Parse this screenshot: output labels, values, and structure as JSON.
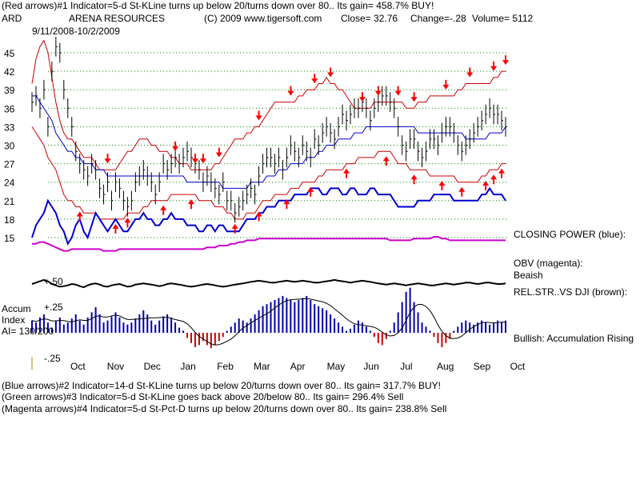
{
  "header": {
    "line1": "(Red arrows)#1 Indicator=5-d St-KLine turns up below 20/turns down over 80.. Its gain= 458.7% BUY!",
    "ticker": "ARD",
    "company": "ARENA RESOURCES",
    "copyright": "(C) 2009 www.tigersoft.com",
    "close": "Close=  32.76",
    "change": "Change=-.28",
    "volume": "Volume= 5112",
    "date_range": "9/11/2008-10/2/2009"
  },
  "panel_labels": {
    "closing_power": "CLOSING POWER (blue):",
    "obv": "OBV (magenta):",
    "obv_status": "Beaish",
    "relstr": "REL.STR..VS DJI (brown):",
    "relstr_tick": "+.50",
    "accum_title_1": "Accum",
    "accum_title_2": "Index",
    "ai": "AI= 130/200",
    "accum_status": "Bullish: Accumulation Rising",
    "accum_pos": "+.25",
    "accum_neg": "-.25"
  },
  "footer": {
    "line2": "(Blue arrows)#2 Indicator=14-d St-KLine turns up below 20/turns down over 80.. Its gain= 317.7% BUY!",
    "line3": "(Green arrows)#3 Indicator=5-d St-KLine goes back above 20/below 80.. Its gain= 296.4% Sell",
    "line4": "(Magenta arrows)#4 Indicator=5-d St-Pct-D turns up below 20/turns down over 80.. Its gain= 238.8% Sell"
  },
  "colors": {
    "price": "#000000",
    "bands": "#cc0000",
    "moving_average": "#0000cc",
    "closing_power": "#0000cc",
    "obv": "#cc00cc",
    "relstr": "#000000",
    "accum_pos": "#0000aa",
    "accum_neg": "#cc0000",
    "grid": "#008000",
    "arrows": "#ff0000"
  },
  "chart_data": {
    "type": "line",
    "title": "ARENA RESOURCES",
    "xlabel": "",
    "ylabel": "",
    "x_categories": [
      "Oct",
      "Nov",
      "Dec",
      "Jan",
      "Feb",
      "Mar",
      "Apr",
      "May",
      "Jun",
      "Jul",
      "Aug",
      "Sep",
      "Oct"
    ],
    "y_ticks": [
      15,
      18,
      21,
      24,
      27,
      30,
      33,
      36,
      39,
      42,
      45
    ],
    "ylim": [
      13.5,
      47.5
    ],
    "grid": true,
    "price_close": [
      37,
      38,
      36,
      39,
      33,
      42,
      46,
      45,
      39,
      36,
      33,
      29,
      27,
      26,
      25,
      27,
      26,
      23,
      22,
      24,
      21,
      24,
      23,
      21,
      20,
      21,
      24,
      25,
      26,
      25,
      24,
      22,
      24,
      27,
      26,
      27,
      28,
      27,
      28,
      29,
      28,
      27,
      26,
      24,
      25,
      24,
      23,
      22,
      24,
      21,
      21,
      19,
      20,
      21,
      22,
      23,
      22,
      25,
      27,
      28,
      28,
      27,
      28,
      26,
      28,
      30,
      29,
      28,
      30,
      29,
      28,
      31,
      30,
      32,
      33,
      32,
      31,
      33,
      35,
      34,
      35,
      36,
      36,
      37,
      36,
      34,
      36,
      37,
      38,
      38,
      37,
      36,
      33,
      30,
      29,
      31,
      31,
      29,
      28,
      29,
      31,
      31,
      30,
      32,
      33,
      33,
      32,
      30,
      29,
      30,
      31,
      32,
      33,
      34,
      35,
      36,
      35,
      35,
      34,
      33
    ],
    "upper_band": [
      40,
      44,
      46,
      47,
      45,
      41,
      37,
      34,
      32,
      31,
      31,
      30,
      29,
      28,
      28,
      28,
      27,
      26,
      26,
      26,
      26,
      26,
      27,
      28,
      29,
      29,
      30,
      31,
      31,
      31,
      30,
      30,
      29,
      29,
      29,
      28,
      28,
      27,
      27,
      27,
      26,
      26,
      26,
      26,
      26,
      26,
      27,
      27,
      28,
      29,
      30,
      31,
      31,
      31,
      32,
      32,
      33,
      33,
      34,
      35,
      36,
      37,
      37,
      37,
      37,
      37,
      37,
      38,
      38,
      39,
      39,
      39,
      40,
      40,
      41,
      40,
      40,
      39,
      39,
      38,
      37,
      36,
      36,
      36,
      36,
      36,
      37,
      37,
      37,
      37,
      37,
      37,
      37,
      37,
      36,
      36,
      36,
      37,
      37,
      37,
      38,
      38,
      38,
      38,
      38,
      38,
      38,
      39,
      39,
      40,
      40,
      40,
      40,
      40,
      40,
      40,
      41,
      41,
      42,
      42
    ],
    "lower_band": [
      33,
      32,
      31,
      30,
      28,
      27,
      26,
      24,
      22,
      21,
      21,
      20,
      20,
      19,
      19,
      19,
      19,
      18,
      18,
      18,
      18,
      18,
      18,
      18,
      19,
      19,
      19,
      19,
      20,
      20,
      21,
      21,
      21,
      21,
      21,
      22,
      22,
      22,
      22,
      22,
      22,
      22,
      21,
      21,
      21,
      21,
      20,
      20,
      20,
      19,
      19,
      18,
      18,
      18,
      19,
      19,
      19,
      20,
      21,
      21,
      21,
      22,
      22,
      22,
      22,
      23,
      23,
      23,
      24,
      24,
      24,
      24,
      25,
      25,
      26,
      26,
      26,
      26,
      26,
      27,
      27,
      27,
      28,
      28,
      28,
      28,
      28,
      29,
      29,
      29,
      29,
      28,
      27,
      27,
      27,
      26,
      26,
      26,
      26,
      26,
      25,
      25,
      25,
      25,
      25,
      25,
      25,
      24,
      24,
      24,
      24,
      24,
      24,
      25,
      25,
      26,
      26,
      26,
      27,
      27
    ],
    "moving_average": [
      38,
      38,
      37,
      36,
      35,
      34,
      32,
      31,
      30,
      29,
      29,
      28,
      28,
      27,
      27,
      27,
      26,
      26,
      26,
      25,
      25,
      25,
      25,
      25,
      25,
      25,
      25,
      25,
      25,
      25,
      25,
      25,
      25,
      25,
      25,
      25,
      25,
      25,
      25,
      24,
      24,
      24,
      24,
      24,
      24,
      24,
      24,
      24,
      23,
      23,
      23,
      23,
      23,
      23,
      23,
      24,
      24,
      24,
      24,
      25,
      25,
      25,
      26,
      26,
      26,
      27,
      27,
      27,
      27,
      28,
      28,
      28,
      29,
      29,
      30,
      30,
      30,
      31,
      31,
      31,
      31,
      32,
      32,
      32,
      33,
      33,
      33,
      33,
      33,
      33,
      33,
      33,
      33,
      33,
      33,
      33,
      33,
      32,
      32,
      32,
      32,
      32,
      32,
      32,
      32,
      32,
      32,
      32,
      32,
      31,
      31,
      31,
      31,
      31,
      31,
      32,
      32,
      32,
      32,
      33
    ],
    "closing_power": [
      15,
      17,
      18,
      19,
      21,
      20,
      19,
      17,
      16,
      14,
      15,
      17,
      18,
      16,
      15,
      17,
      19,
      18,
      17,
      16,
      17,
      18,
      17,
      16,
      16,
      17,
      18,
      18,
      19,
      18,
      18,
      17,
      17,
      18,
      18,
      19,
      18,
      18,
      18,
      17,
      17,
      17,
      16,
      16,
      17,
      17,
      16,
      17,
      17,
      16,
      16,
      16,
      16,
      17,
      18,
      18,
      18,
      19,
      19,
      20,
      20,
      20,
      21,
      21,
      21,
      21,
      22,
      22,
      22,
      22,
      23,
      23,
      23,
      22,
      22,
      23,
      23,
      23,
      22,
      22,
      23,
      23,
      22,
      22,
      22,
      23,
      23,
      22,
      22,
      22,
      22,
      21,
      20,
      20,
      20,
      20,
      20,
      21,
      21,
      21,
      21,
      22,
      22,
      22,
      22,
      22,
      21,
      21,
      21,
      21,
      21,
      21,
      21,
      22,
      22,
      23,
      22,
      22,
      22,
      21
    ],
    "obv": [
      0.6,
      0.6,
      0.7,
      0.7,
      0.6,
      0.5,
      0.4,
      0.3,
      0.2,
      0.2,
      0.3,
      0.3,
      0.3,
      0.3,
      0.3,
      0.3,
      0.3,
      0.3,
      0.2,
      0.2,
      0.2,
      0.2,
      0.3,
      0.3,
      0.3,
      0.3,
      0.3,
      0.3,
      0.3,
      0.3,
      0.3,
      0.3,
      0.3,
      0.3,
      0.3,
      0.3,
      0.3,
      0.3,
      0.3,
      0.3,
      0.3,
      0.3,
      0.3,
      0.3,
      0.4,
      0.4,
      0.4,
      0.5,
      0.5,
      0.5,
      0.6,
      0.6,
      0.7,
      0.7,
      0.8,
      0.8,
      0.8,
      0.9,
      0.9,
      0.9,
      0.9,
      0.9,
      0.9,
      0.9,
      0.9,
      0.9,
      0.9,
      0.9,
      0.9,
      0.9,
      0.9,
      0.9,
      0.9,
      0.9,
      0.9,
      0.9,
      0.9,
      0.9,
      0.9,
      0.9,
      0.9,
      0.9,
      0.9,
      0.9,
      0.9,
      0.9,
      0.9,
      0.9,
      0.9,
      0.9,
      0.8,
      0.8,
      0.8,
      0.8,
      0.8,
      0.8,
      0.9,
      0.9,
      0.9,
      0.9,
      0.9,
      1.0,
      1.0,
      0.9,
      0.9,
      0.8,
      0.8,
      0.8,
      0.8,
      0.8,
      0.8,
      0.8,
      0.8,
      0.8,
      0.8,
      0.8,
      0.8,
      0.8,
      0.8,
      0.8
    ],
    "relstr": [
      0.5,
      0.55,
      0.6,
      0.65,
      0.6,
      0.5,
      0.45,
      0.4,
      0.42,
      0.45,
      0.5,
      0.48,
      0.42,
      0.38,
      0.45,
      0.5,
      0.52,
      0.48,
      0.42,
      0.4,
      0.45,
      0.48,
      0.5,
      0.45,
      0.4,
      0.42,
      0.48,
      0.5,
      0.52,
      0.5,
      0.48,
      0.45,
      0.42,
      0.45,
      0.5,
      0.52,
      0.5,
      0.48,
      0.45,
      0.42,
      0.4,
      0.42,
      0.45,
      0.48,
      0.5,
      0.48,
      0.45,
      0.42,
      0.4,
      0.42,
      0.45,
      0.48,
      0.5,
      0.52,
      0.55,
      0.58,
      0.6,
      0.62,
      0.6,
      0.58,
      0.55,
      0.55,
      0.58,
      0.6,
      0.62,
      0.6,
      0.58,
      0.6,
      0.62,
      0.6,
      0.58,
      0.55,
      0.55,
      0.58,
      0.6,
      0.62,
      0.65,
      0.62,
      0.6,
      0.58,
      0.55,
      0.58,
      0.6,
      0.62,
      0.6,
      0.58,
      0.55,
      0.52,
      0.5,
      0.48,
      0.5,
      0.52,
      0.5,
      0.48,
      0.45,
      0.48,
      0.5,
      0.52,
      0.5,
      0.48,
      0.45,
      0.45,
      0.48,
      0.5,
      0.52,
      0.5,
      0.48,
      0.5,
      0.52,
      0.55,
      0.55,
      0.52,
      0.5,
      0.52,
      0.55,
      0.55,
      0.52,
      0.5,
      0.5,
      0.52
    ],
    "accum_index": [
      0.12,
      0.1,
      0.15,
      0.18,
      0.1,
      0.05,
      0.12,
      0.15,
      0.08,
      0.1,
      0.14,
      0.18,
      0.12,
      0.08,
      0.15,
      0.2,
      0.25,
      0.18,
      0.1,
      0.12,
      0.16,
      0.2,
      0.15,
      0.1,
      0.08,
      0.1,
      0.14,
      0.18,
      0.22,
      0.18,
      0.12,
      0.08,
      0.12,
      0.16,
      0.18,
      0.15,
      0.1,
      0.05,
      0.02,
      -0.05,
      -0.1,
      -0.14,
      -0.12,
      -0.08,
      -0.12,
      -0.15,
      -0.12,
      -0.08,
      -0.04,
      0.02,
      0.06,
      0.1,
      0.14,
      0.12,
      0.1,
      0.14,
      0.18,
      0.22,
      0.26,
      0.28,
      0.3,
      0.32,
      0.34,
      0.36,
      0.34,
      0.32,
      0.3,
      0.32,
      0.34,
      0.36,
      0.32,
      0.28,
      0.26,
      0.24,
      0.22,
      0.18,
      0.14,
      0.1,
      0.06,
      0.02,
      0.04,
      0.08,
      0.12,
      0.1,
      0.06,
      0.02,
      -0.04,
      -0.1,
      -0.12,
      -0.06,
      0.02,
      0.1,
      0.2,
      0.3,
      0.4,
      0.44,
      0.3,
      0.2,
      0.1,
      0.06,
      0.02,
      -0.04,
      -0.1,
      -0.14,
      -0.1,
      -0.06,
      0.02,
      0.06,
      0.1,
      0.12,
      0.1,
      0.08,
      0.1,
      0.12,
      0.1,
      0.08,
      0.1,
      0.12,
      0.1,
      0.12
    ],
    "red_arrows_up": [
      12,
      21,
      24,
      33,
      40,
      51,
      57,
      64,
      70,
      79,
      89,
      96,
      103,
      108,
      114,
      116,
      118
    ],
    "red_arrows_down": [
      19,
      36,
      41,
      43,
      47,
      57,
      65,
      71,
      75,
      83,
      87,
      92,
      96,
      104,
      110,
      116,
      119
    ]
  }
}
